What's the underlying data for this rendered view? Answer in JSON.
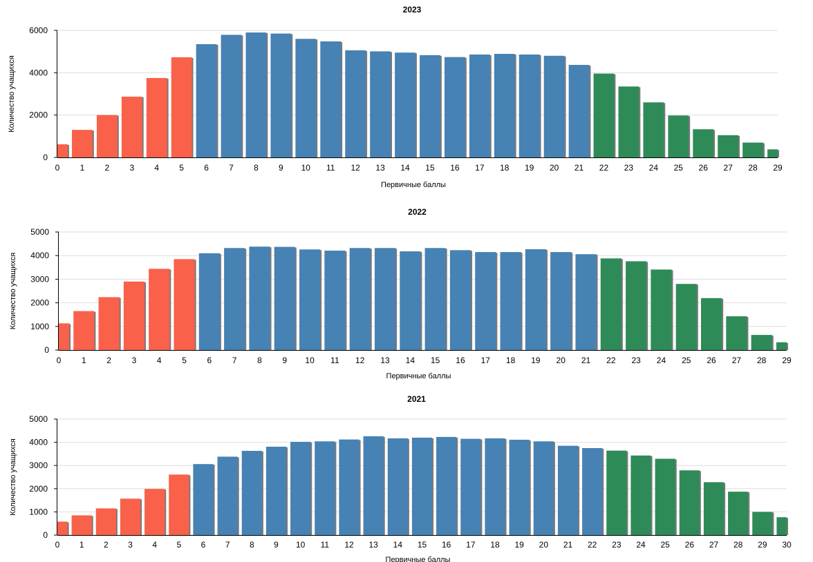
{
  "colors": {
    "low": "#f9614a",
    "mid": "#4682b4",
    "high": "#2e8b57",
    "shadow": "#7a7a7a"
  },
  "chart_data": [
    {
      "type": "bar",
      "title": "2023",
      "xlabel": "Первичные баллы",
      "ylabel": "Количество учащихся",
      "ylim": [
        0,
        6000
      ],
      "yticks": [
        0,
        2000,
        4000,
        6000
      ],
      "categories": [
        "0",
        "1",
        "2",
        "3",
        "4",
        "5",
        "6",
        "7",
        "8",
        "9",
        "10",
        "11",
        "12",
        "13",
        "14",
        "15",
        "16",
        "17",
        "18",
        "19",
        "20",
        "21",
        "22",
        "23",
        "24",
        "25",
        "26",
        "27",
        "28",
        "29"
      ],
      "values": [
        620,
        1300,
        2000,
        2870,
        3750,
        4730,
        5350,
        5790,
        5900,
        5850,
        5600,
        5480,
        5060,
        5010,
        4950,
        4830,
        4740,
        4860,
        4890,
        4860,
        4800,
        4370,
        3960,
        3350,
        2600,
        1980,
        1330,
        1050,
        700,
        380
      ],
      "groups": [
        "low",
        "low",
        "low",
        "low",
        "low",
        "low",
        "mid",
        "mid",
        "mid",
        "mid",
        "mid",
        "mid",
        "mid",
        "mid",
        "mid",
        "mid",
        "mid",
        "mid",
        "mid",
        "mid",
        "mid",
        "mid",
        "high",
        "high",
        "high",
        "high",
        "high",
        "high",
        "high",
        "high"
      ]
    },
    {
      "type": "bar",
      "title": "2022",
      "xlabel": "Первичные баллы",
      "ylabel": "Количество учащихся",
      "ylim": [
        0,
        5000
      ],
      "yticks": [
        0,
        1000,
        2000,
        3000,
        4000,
        5000
      ],
      "categories": [
        "0",
        "1",
        "2",
        "3",
        "4",
        "5",
        "6",
        "7",
        "8",
        "9",
        "10",
        "11",
        "12",
        "13",
        "14",
        "15",
        "16",
        "17",
        "18",
        "19",
        "20",
        "21",
        "22",
        "23",
        "24",
        "25",
        "26",
        "27",
        "28",
        "29"
      ],
      "values": [
        1130,
        1650,
        2240,
        2900,
        3440,
        3850,
        4100,
        4320,
        4380,
        4370,
        4260,
        4210,
        4320,
        4320,
        4180,
        4320,
        4230,
        4150,
        4150,
        4270,
        4150,
        4060,
        3880,
        3760,
        3410,
        2800,
        2200,
        1430,
        640,
        330
      ],
      "groups": [
        "low",
        "low",
        "low",
        "low",
        "low",
        "low",
        "mid",
        "mid",
        "mid",
        "mid",
        "mid",
        "mid",
        "mid",
        "mid",
        "mid",
        "mid",
        "mid",
        "mid",
        "mid",
        "mid",
        "mid",
        "mid",
        "high",
        "high",
        "high",
        "high",
        "high",
        "high",
        "high",
        "high"
      ]
    },
    {
      "type": "bar",
      "title": "2021",
      "xlabel": "Первичные баллы",
      "ylabel": "Количество учащихся",
      "ylim": [
        0,
        5000
      ],
      "yticks": [
        0,
        1000,
        2000,
        3000,
        4000,
        5000
      ],
      "categories": [
        "0",
        "1",
        "2",
        "3",
        "4",
        "5",
        "6",
        "7",
        "8",
        "9",
        "10",
        "11",
        "12",
        "13",
        "14",
        "15",
        "16",
        "17",
        "18",
        "19",
        "20",
        "21",
        "22",
        "23",
        "24",
        "25",
        "26",
        "27",
        "28",
        "29",
        "30"
      ],
      "values": [
        580,
        850,
        1150,
        1570,
        1990,
        2610,
        3060,
        3380,
        3630,
        3810,
        4020,
        4040,
        4120,
        4260,
        4170,
        4200,
        4230,
        4150,
        4170,
        4110,
        4040,
        3850,
        3750,
        3640,
        3430,
        3290,
        2790,
        2280,
        1870,
        1000,
        770
      ],
      "groups": [
        "low",
        "low",
        "low",
        "low",
        "low",
        "low",
        "mid",
        "mid",
        "mid",
        "mid",
        "mid",
        "mid",
        "mid",
        "mid",
        "mid",
        "mid",
        "mid",
        "mid",
        "mid",
        "mid",
        "mid",
        "mid",
        "mid",
        "high",
        "high",
        "high",
        "high",
        "high",
        "high",
        "high",
        "high"
      ]
    }
  ]
}
